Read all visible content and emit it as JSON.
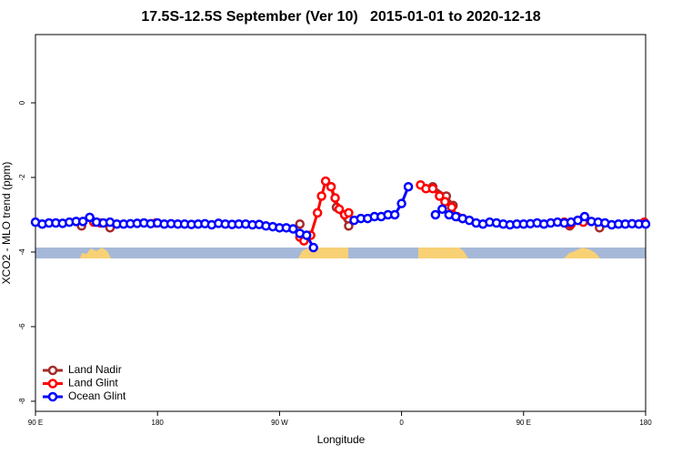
{
  "chart_data": {
    "type": "line",
    "title": "17.5S-12.5S September (Ver 10)   2015-01-01 to 2020-12-18",
    "x_label": "Longitude",
    "y_label": "XCO2 - MLO trend (ppm)",
    "xlim": [
      90,
      540
    ],
    "xticks": [
      {
        "value": 90,
        "label": "90 E"
      },
      180,
      {
        "value": 270,
        "label": "90 W"
      },
      {
        "value": 360,
        "label": "0"
      },
      {
        "value": 450,
        "label": "90 E"
      },
      {
        "value": 540,
        "label": "180"
      }
    ],
    "ylim": [
      -8.27,
      1.83
    ],
    "yticks": [
      0,
      -2,
      -4,
      -6,
      -8
    ],
    "legend": "bottom-left",
    "series": [
      {
        "name": "Land Nadir",
        "color": "#a52a2a",
        "x": [
          124,
          null,
          145,
          null,
          285,
          null,
          308,
          312,
          321,
          null,
          383,
          393,
          398,
          null,
          484,
          null,
          506
        ],
        "values": [
          -3.3,
          null,
          -3.35,
          null,
          -3.25,
          null,
          -2.25,
          -2.8,
          -3.3,
          null,
          -2.25,
          -2.5,
          -2.75,
          null,
          -3.3,
          null,
          -3.35
        ]
      },
      {
        "name": "Land Glint",
        "color": "#ff0000",
        "x": [
          133,
          138,
          null,
          179,
          null,
          285,
          288,
          293,
          298,
          301,
          304,
          308,
          311,
          314,
          318,
          321,
          null,
          374,
          378,
          383,
          388,
          392,
          397,
          401,
          405,
          null,
          480,
          485,
          490,
          494,
          null,
          539
        ],
        "values": [
          -3.2,
          -3.22,
          null,
          -3.22,
          null,
          -3.6,
          -3.7,
          -3.55,
          -2.95,
          -2.5,
          -2.1,
          -2.25,
          -2.55,
          -2.85,
          -3.0,
          -2.95,
          null,
          -2.2,
          -2.3,
          -2.3,
          -2.5,
          -2.65,
          -2.8,
          -3.05,
          -3.1,
          null,
          -3.2,
          -3.25,
          -3.15,
          -3.2,
          null,
          -3.2
        ]
      },
      {
        "name": "Ocean Glint",
        "color": "#0000ff",
        "x": [
          90,
          95,
          100,
          105,
          110,
          115,
          120,
          125,
          130,
          135,
          140,
          145,
          150,
          155,
          160,
          165,
          170,
          175,
          180,
          185,
          190,
          195,
          200,
          205,
          210,
          215,
          220,
          225,
          230,
          235,
          240,
          245,
          250,
          255,
          260,
          265,
          270,
          275,
          280,
          285,
          290,
          295,
          300,
          305,
          310,
          315,
          320,
          325,
          330,
          335,
          340,
          345,
          350,
          355,
          360,
          365,
          370,
          375,
          380,
          385,
          390,
          395,
          400,
          405,
          410,
          415,
          420,
          425,
          430,
          435,
          440,
          445,
          450,
          455,
          460,
          465,
          470,
          475,
          480,
          485,
          490,
          495,
          500,
          505,
          510,
          515,
          520,
          525,
          530,
          535,
          540
        ],
        "values": [
          -3.2,
          -3.25,
          -3.22,
          -3.22,
          -3.23,
          -3.2,
          -3.18,
          -3.18,
          -3.07,
          -3.2,
          -3.22,
          -3.2,
          -3.25,
          -3.25,
          -3.24,
          -3.23,
          -3.22,
          -3.24,
          -3.22,
          -3.25,
          -3.24,
          -3.25,
          -3.25,
          -3.26,
          -3.25,
          -3.24,
          -3.27,
          -3.23,
          -3.25,
          -3.26,
          -3.25,
          -3.25,
          -3.27,
          -3.26,
          -3.3,
          -3.32,
          -3.35,
          -3.35,
          -3.38,
          -3.5,
          -3.55,
          -3.88,
          null,
          null,
          null,
          null,
          null,
          -3.15,
          -3.1,
          -3.1,
          -3.05,
          -3.05,
          -3.0,
          -3.0,
          -2.7,
          -2.25,
          null,
          null,
          null,
          -3.0,
          -2.85,
          -3.0,
          -3.05,
          -3.1,
          -3.15,
          -3.22,
          -3.25,
          -3.2,
          -3.22,
          -3.25,
          -3.27,
          -3.25,
          -3.25,
          -3.24,
          -3.22,
          -3.25,
          -3.22,
          -3.2,
          -3.22,
          -3.2,
          -3.15,
          -3.05,
          -3.18,
          -3.2,
          -3.22,
          -3.27,
          -3.25,
          -3.25,
          -3.24,
          -3.25,
          -3.25
        ]
      }
    ]
  }
}
